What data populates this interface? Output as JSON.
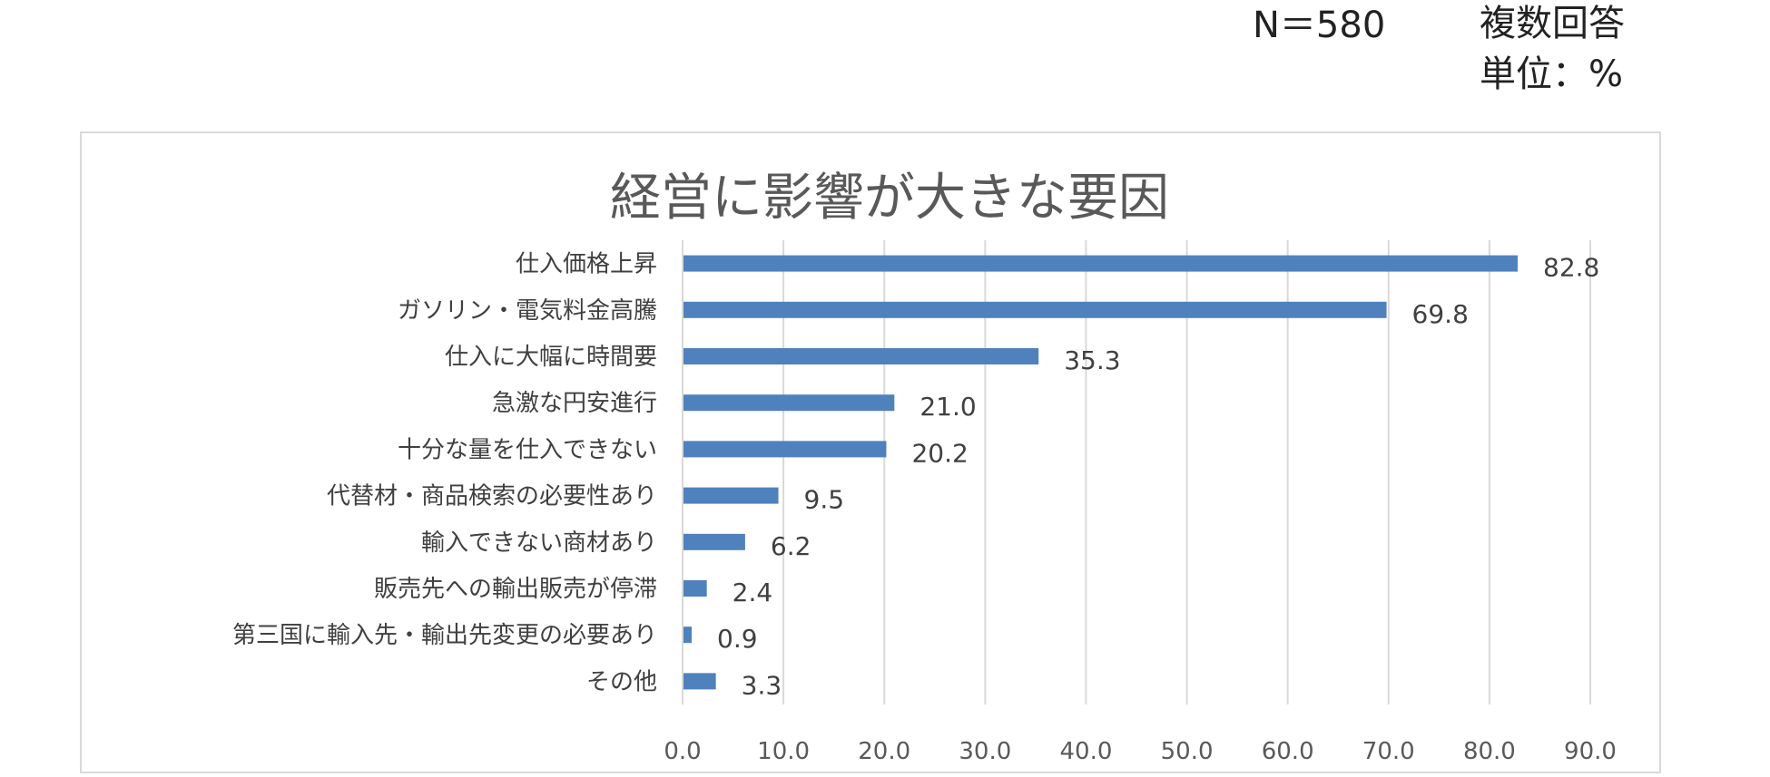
{
  "header_notes": {
    "n": "N＝580",
    "answer_type": "複数回答",
    "unit": "単位：%"
  },
  "chart_data": {
    "type": "bar",
    "orientation": "horizontal",
    "title": "経営に影響が大きな要因",
    "categories": [
      "仕入価格上昇",
      "ガソリン・電気料金高騰",
      "仕入に大幅に時間要",
      "急激な円安進行",
      "十分な量を仕入できない",
      "代替材・商品検索の必要性あり",
      "輸入できない商材あり",
      "販売先への輸出販売が停滞",
      "第三国に輸入先・輸出先変更の必要あり",
      "その他"
    ],
    "values": [
      82.8,
      69.8,
      35.3,
      21.0,
      20.2,
      9.5,
      6.2,
      2.4,
      0.9,
      3.3
    ],
    "value_labels": [
      "82.8",
      "69.8",
      "35.3",
      "21.0",
      "20.2",
      "9.5",
      "6.2",
      "2.4",
      "0.9",
      "3.3"
    ],
    "xlim": [
      0,
      90
    ],
    "xticks": [
      "0.0",
      "10.0",
      "20.0",
      "30.0",
      "40.0",
      "50.0",
      "60.0",
      "70.0",
      "80.0",
      "90.0"
    ],
    "grid": true,
    "legend": false,
    "bar_color": "#4f81bd",
    "grid_color": "#d9d9d9"
  }
}
